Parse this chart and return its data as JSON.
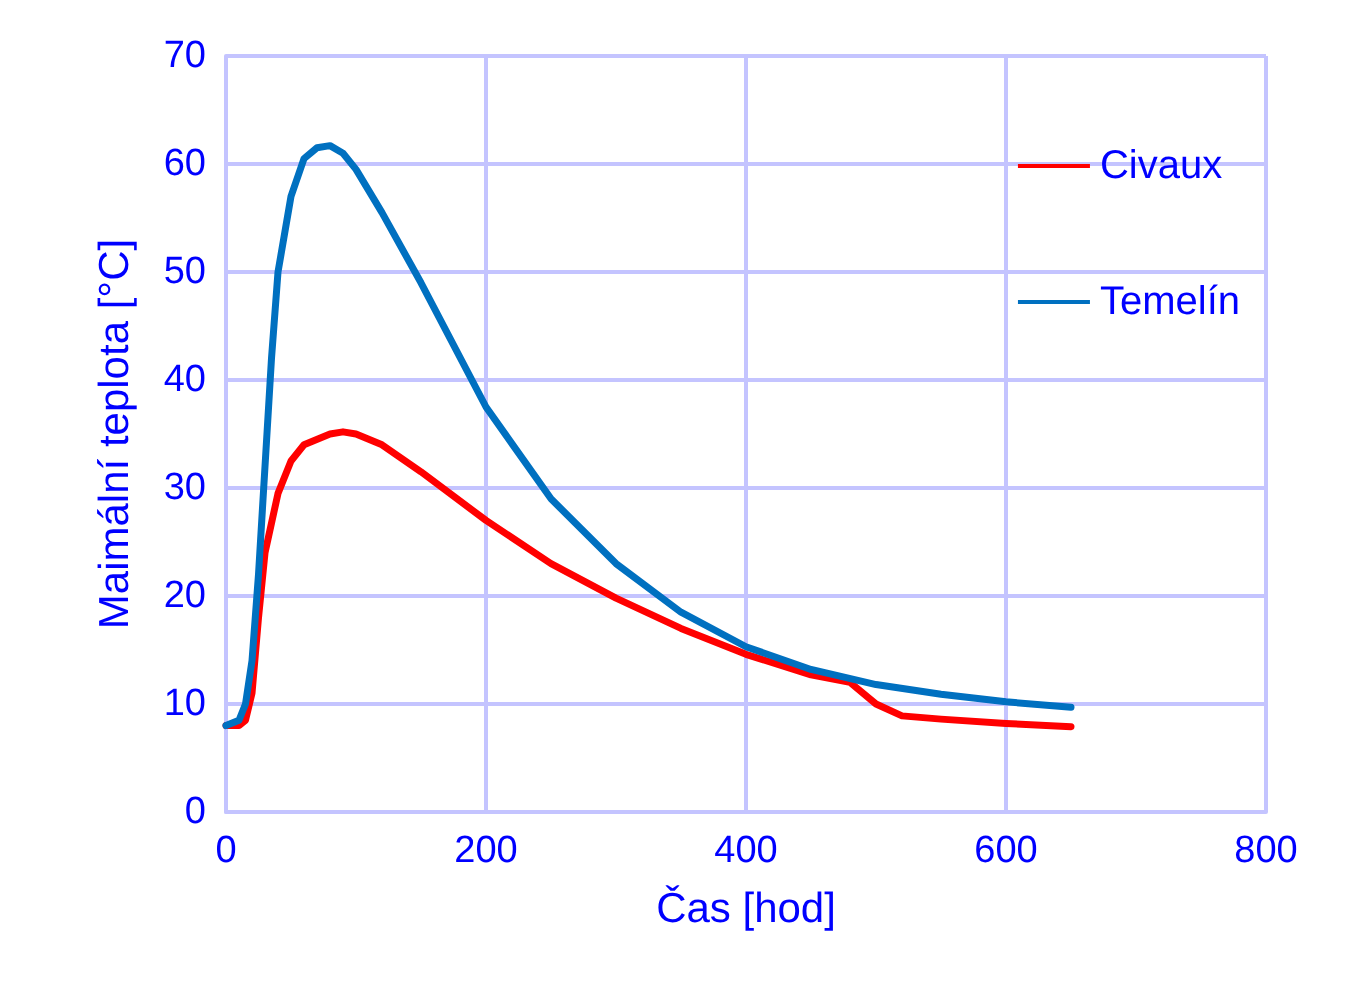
{
  "chart_data": {
    "type": "line",
    "xlabel": "Čas [hod]",
    "ylabel": "Maimální teplota [°C]",
    "xlim": [
      0,
      800
    ],
    "xticks": [
      0,
      200,
      400,
      600,
      800
    ],
    "ylim": [
      0,
      70
    ],
    "yticks": [
      0,
      10,
      20,
      30,
      40,
      50,
      60,
      70
    ],
    "grid": true,
    "legend": "top right",
    "marker": "none",
    "line_style": "solid",
    "series": [
      {
        "name": "Civaux",
        "color": "#ff0000",
        "x": [
          0,
          10,
          15,
          20,
          25,
          30,
          40,
          50,
          60,
          80,
          90,
          100,
          120,
          150,
          200,
          250,
          300,
          350,
          400,
          450,
          480,
          500,
          520,
          550,
          600,
          650
        ],
        "values": [
          8,
          8,
          8.5,
          11,
          18,
          24,
          29.5,
          32.5,
          34,
          35,
          35.2,
          35,
          34,
          31.5,
          27,
          23,
          19.8,
          17,
          14.6,
          12.7,
          12,
          10,
          8.9,
          8.6,
          8.2,
          7.9
        ]
      },
      {
        "name": "Temelín",
        "color": "#0070c0",
        "x": [
          0,
          10,
          15,
          20,
          25,
          30,
          35,
          40,
          50,
          60,
          70,
          80,
          90,
          100,
          120,
          150,
          200,
          250,
          300,
          350,
          400,
          450,
          500,
          550,
          600,
          650
        ],
        "values": [
          8,
          8.5,
          10,
          14,
          22,
          32,
          42,
          50,
          57,
          60.5,
          61.5,
          61.7,
          61,
          59.5,
          55.5,
          49,
          37.5,
          29,
          23,
          18.5,
          15.3,
          13.2,
          11.8,
          10.9,
          10.2,
          9.7
        ]
      }
    ]
  }
}
